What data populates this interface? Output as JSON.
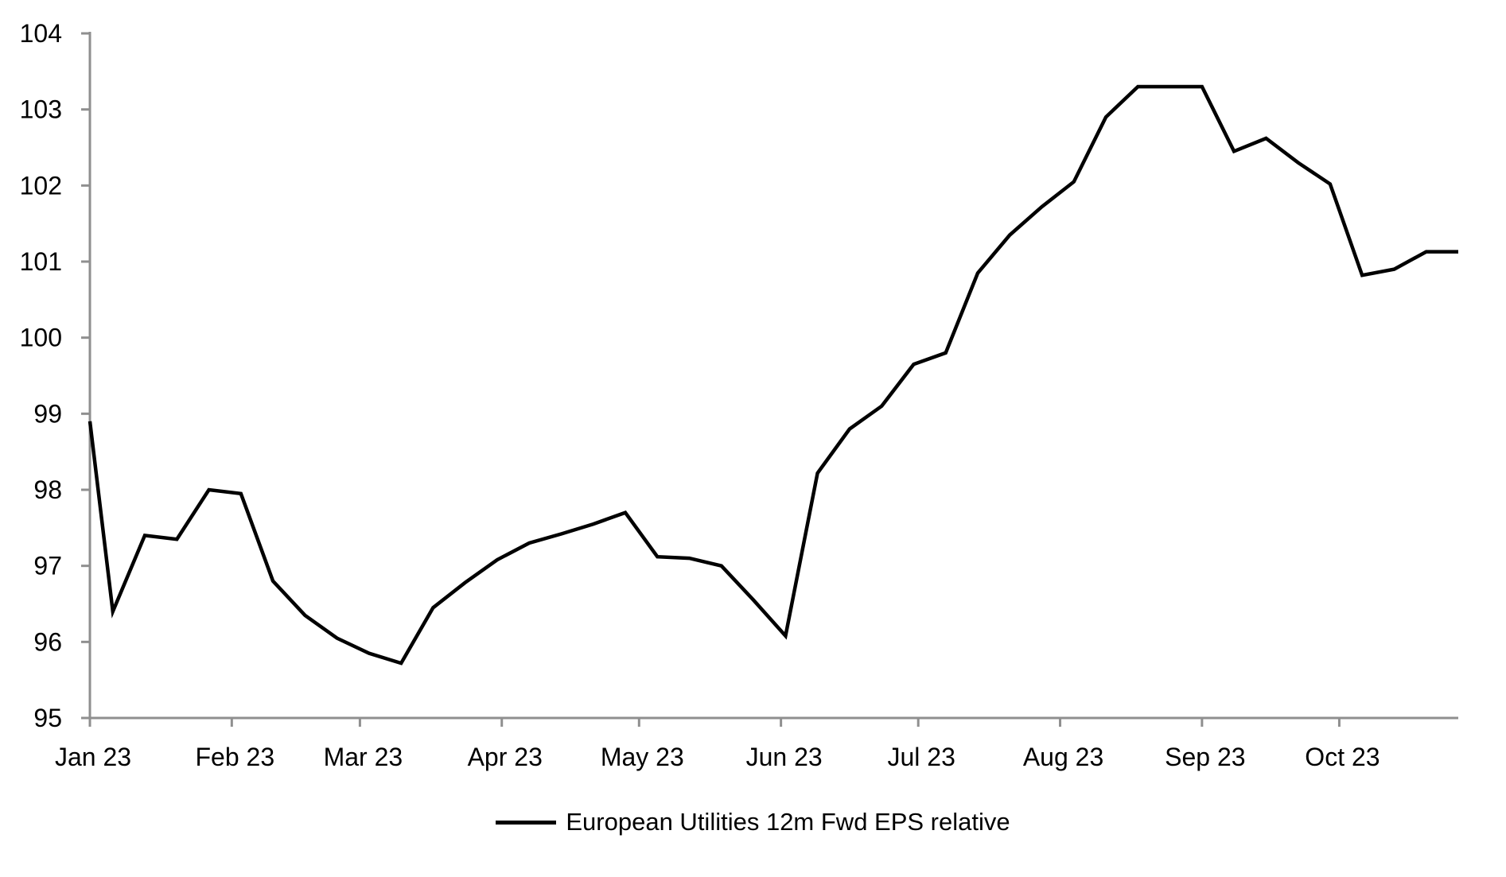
{
  "page": {
    "background": "#ffffff"
  },
  "chart_data": {
    "type": "line",
    "title": "",
    "xlabel": "",
    "ylabel": "",
    "grid": false,
    "legend_position": "bottom-center",
    "axis_color": "#8f8f8f",
    "text_color": "#000000",
    "ylim": [
      95,
      104
    ],
    "y_ticks": [
      95,
      96,
      97,
      98,
      99,
      100,
      101,
      102,
      103,
      104
    ],
    "x_ticks": [
      {
        "label": "Jan 23",
        "date": "2023-01-01"
      },
      {
        "label": "Feb 23",
        "date": "2023-02-01"
      },
      {
        "label": "Mar 23",
        "date": "2023-03-01"
      },
      {
        "label": "Apr 23",
        "date": "2023-04-01"
      },
      {
        "label": "May 23",
        "date": "2023-05-01"
      },
      {
        "label": "Jun 23",
        "date": "2023-06-01"
      },
      {
        "label": "Jul 23",
        "date": "2023-07-01"
      },
      {
        "label": "Aug 23",
        "date": "2023-08-01"
      },
      {
        "label": "Sep 23",
        "date": "2023-09-01"
      },
      {
        "label": "Oct 23",
        "date": "2023-10-01"
      }
    ],
    "x": [
      "2023-01-01",
      "2023-01-06",
      "2023-01-13",
      "2023-01-20",
      "2023-01-27",
      "2023-02-03",
      "2023-02-10",
      "2023-02-17",
      "2023-02-24",
      "2023-03-03",
      "2023-03-10",
      "2023-03-17",
      "2023-03-24",
      "2023-03-31",
      "2023-04-07",
      "2023-04-14",
      "2023-04-21",
      "2023-04-28",
      "2023-05-05",
      "2023-05-12",
      "2023-05-19",
      "2023-05-26",
      "2023-06-02",
      "2023-06-09",
      "2023-06-16",
      "2023-06-23",
      "2023-06-30",
      "2023-07-07",
      "2023-07-14",
      "2023-07-21",
      "2023-07-28",
      "2023-08-04",
      "2023-08-11",
      "2023-08-18",
      "2023-08-25",
      "2023-09-01",
      "2023-09-08",
      "2023-09-15",
      "2023-09-22",
      "2023-09-29",
      "2023-10-06",
      "2023-10-13",
      "2023-10-20",
      "2023-10-27"
    ],
    "series": [
      {
        "name": "European Utilities 12m Fwd EPS relative",
        "color": "#000000",
        "values": [
          98.9,
          96.4,
          97.4,
          97.35,
          98.0,
          97.95,
          96.8,
          96.35,
          96.05,
          95.85,
          95.72,
          96.45,
          96.78,
          97.08,
          97.3,
          97.42,
          97.55,
          97.7,
          97.12,
          97.1,
          97.0,
          96.55,
          96.08,
          98.22,
          98.8,
          99.1,
          99.65,
          99.8,
          100.85,
          101.35,
          101.72,
          102.05,
          102.9,
          103.3,
          103.3,
          103.3,
          102.45,
          102.62,
          102.3,
          102.02,
          100.82,
          100.9,
          101.13,
          101.13
        ]
      }
    ]
  }
}
